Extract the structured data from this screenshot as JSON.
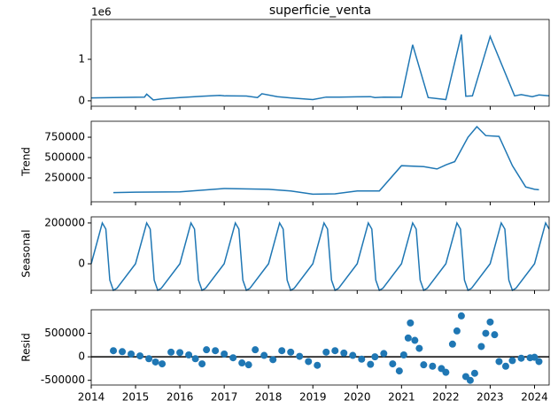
{
  "chart_data": [
    {
      "type": "line",
      "title": "superficie_venta",
      "offset_text": "1e6",
      "color": "#1f77b4",
      "x": [
        2014,
        2014.5,
        2015,
        2015.2,
        2015.25,
        2015.4,
        2015.6,
        2016,
        2016.5,
        2016.9,
        2017,
        2017.5,
        2017.75,
        2017.85,
        2018.2,
        2018.5,
        2019,
        2019.3,
        2019.6,
        2020,
        2020.3,
        2020.4,
        2020.6,
        2021,
        2021.25,
        2021.6,
        2022,
        2022.35,
        2022.45,
        2022.6,
        2023,
        2023.55,
        2023.7,
        2023.95,
        2024.1,
        2024.33
      ],
      "values": [
        70000,
        80000,
        85000,
        90000,
        160000,
        20000,
        50000,
        80000,
        110000,
        130000,
        120000,
        115000,
        80000,
        170000,
        100000,
        70000,
        30000,
        90000,
        90000,
        95000,
        100000,
        80000,
        90000,
        85000,
        1350000,
        80000,
        30000,
        1600000,
        110000,
        120000,
        1550000,
        120000,
        150000,
        100000,
        140000,
        120000
      ],
      "xlim": [
        2014,
        2024.33
      ],
      "ylim": [
        -130000,
        1960000
      ],
      "xticks": [
        2014,
        2015,
        2016,
        2017,
        2018,
        2019,
        2020,
        2021,
        2022,
        2023,
        2024
      ],
      "yticks": [
        0,
        {
          "value": 1000000,
          "label": "1"
        }
      ]
    },
    {
      "type": "line",
      "ylabel": "Trend",
      "color": "#1f77b4",
      "x": [
        2014.5,
        2015,
        2016,
        2017,
        2018,
        2018.5,
        2019,
        2019.5,
        2020,
        2020.5,
        2021,
        2021.5,
        2021.8,
        2022,
        2022.2,
        2022.5,
        2022.7,
        2022.9,
        2023.2,
        2023.5,
        2023.8,
        2024,
        2024.1
      ],
      "values": [
        70000,
        75000,
        80000,
        120000,
        110000,
        90000,
        50000,
        55000,
        90000,
        90000,
        400000,
        390000,
        360000,
        410000,
        450000,
        750000,
        880000,
        770000,
        760000,
        400000,
        140000,
        110000,
        105000
      ],
      "xlim": [
        2014,
        2024.33
      ],
      "ylim": [
        -43000,
        946000
      ],
      "xticks": [
        2014,
        2015,
        2016,
        2017,
        2018,
        2019,
        2020,
        2021,
        2022,
        2023,
        2024
      ],
      "yticks": [
        250000,
        500000,
        750000
      ]
    },
    {
      "type": "line",
      "ylabel": "Seasonal",
      "color": "#1f77b4",
      "x": [
        2014,
        2014.25,
        2014.33,
        2014.42,
        2014.5,
        2014.58,
        2015,
        2015.25,
        2015.33,
        2015.42,
        2015.5,
        2015.58,
        2016,
        2016.25,
        2016.33,
        2016.42,
        2016.5,
        2016.58,
        2017,
        2017.25,
        2017.33,
        2017.42,
        2017.5,
        2017.58,
        2018,
        2018.25,
        2018.33,
        2018.42,
        2018.5,
        2018.58,
        2019,
        2019.25,
        2019.33,
        2019.42,
        2019.5,
        2019.58,
        2020,
        2020.25,
        2020.33,
        2020.42,
        2020.5,
        2020.58,
        2021,
        2021.25,
        2021.33,
        2021.42,
        2021.5,
        2021.58,
        2022,
        2022.25,
        2022.33,
        2022.42,
        2022.5,
        2022.58,
        2023,
        2023.25,
        2023.33,
        2023.42,
        2023.5,
        2023.58,
        2024,
        2024.25,
        2024.33
      ],
      "values": [
        0,
        200000,
        170000,
        -80000,
        -130000,
        -120000,
        0,
        200000,
        170000,
        -80000,
        -130000,
        -120000,
        0,
        200000,
        170000,
        -80000,
        -130000,
        -120000,
        0,
        200000,
        170000,
        -80000,
        -130000,
        -120000,
        0,
        200000,
        170000,
        -80000,
        -130000,
        -120000,
        0,
        200000,
        170000,
        -80000,
        -130000,
        -120000,
        0,
        200000,
        170000,
        -80000,
        -130000,
        -120000,
        0,
        200000,
        170000,
        -80000,
        -130000,
        -120000,
        0,
        200000,
        170000,
        -80000,
        -130000,
        -120000,
        0,
        200000,
        170000,
        -80000,
        -130000,
        -120000,
        0,
        200000,
        170000
      ],
      "xlim": [
        2014,
        2024.33
      ],
      "ylim": [
        -130000,
        230000
      ],
      "xticks": [
        2014,
        2015,
        2016,
        2017,
        2018,
        2019,
        2020,
        2021,
        2022,
        2023,
        2024
      ],
      "yticks": [
        0,
        200000
      ]
    },
    {
      "type": "scatter",
      "ylabel": "Resid",
      "color": "#1f77b4",
      "hline": 0,
      "x": [
        2014.5,
        2014.7,
        2014.9,
        2015.1,
        2015.3,
        2015.45,
        2015.6,
        2015.8,
        2016,
        2016.2,
        2016.35,
        2016.5,
        2016.6,
        2016.8,
        2017,
        2017.2,
        2017.4,
        2017.55,
        2017.7,
        2017.9,
        2018.1,
        2018.3,
        2018.5,
        2018.7,
        2018.9,
        2019.1,
        2019.3,
        2019.5,
        2019.7,
        2019.9,
        2020.1,
        2020.3,
        2020.4,
        2020.6,
        2020.8,
        2020.95,
        2021.05,
        2021.15,
        2021.2,
        2021.3,
        2021.4,
        2021.5,
        2021.7,
        2021.9,
        2022,
        2022.15,
        2022.25,
        2022.35,
        2022.45,
        2022.55,
        2022.65,
        2022.8,
        2022.9,
        2023,
        2023.1,
        2023.2,
        2023.35,
        2023.5,
        2023.7,
        2023.9,
        2024,
        2024.1
      ],
      "values": [
        130000,
        110000,
        60000,
        20000,
        -40000,
        -110000,
        -150000,
        100000,
        90000,
        40000,
        -40000,
        -150000,
        150000,
        130000,
        60000,
        -20000,
        -130000,
        -170000,
        150000,
        30000,
        -60000,
        130000,
        100000,
        10000,
        -100000,
        -180000,
        100000,
        130000,
        80000,
        30000,
        -50000,
        -160000,
        0,
        70000,
        -150000,
        -300000,
        40000,
        400000,
        720000,
        350000,
        180000,
        -170000,
        -200000,
        -250000,
        -330000,
        270000,
        550000,
        870000,
        -420000,
        -500000,
        -350000,
        220000,
        500000,
        740000,
        470000,
        -100000,
        -200000,
        -80000,
        -30000,
        -20000,
        -10000,
        -100000
      ],
      "xlim": [
        2014,
        2024.33
      ],
      "ylim": [
        -600000,
        1000000
      ],
      "xticks": [
        2014,
        2015,
        2016,
        2017,
        2018,
        2019,
        2020,
        2021,
        2022,
        2023,
        2024
      ],
      "yticks": [
        -500000,
        0,
        500000
      ]
    }
  ]
}
